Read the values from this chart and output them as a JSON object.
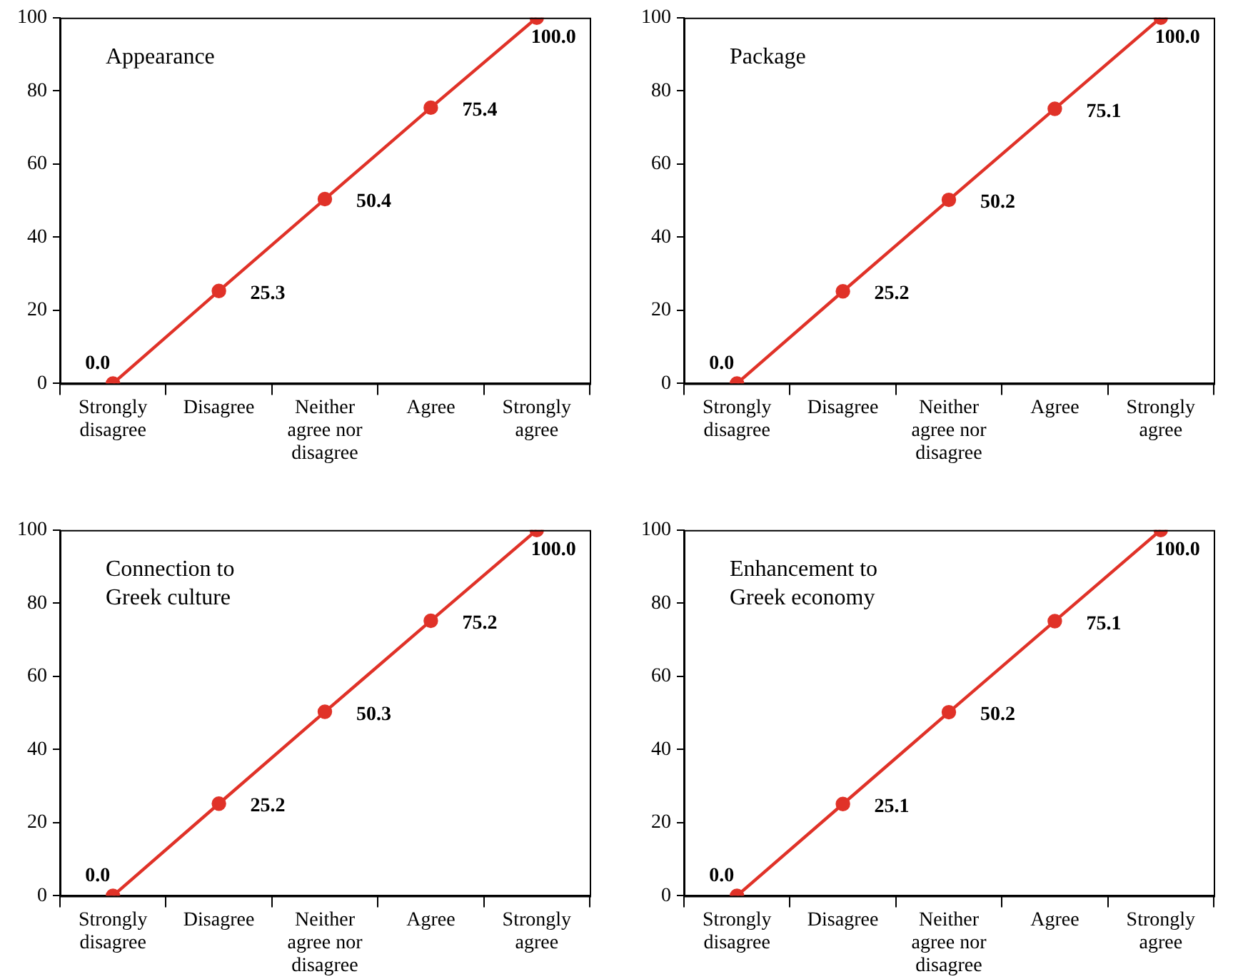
{
  "chart_data": [
    {
      "type": "line",
      "title": "Appearance",
      "categories": [
        "Strongly disagree",
        "Disagree",
        "Neither agree nor disagree",
        "Agree",
        "Strongly agree"
      ],
      "series": [
        {
          "color": "#e03228",
          "values": [
            0.0,
            25.3,
            50.4,
            75.4,
            100.0
          ],
          "value_labels": [
            "0.0",
            "25.3",
            "50.4",
            "75.4",
            "100.0"
          ]
        }
      ],
      "ylim": [
        0,
        100
      ],
      "yticks": [
        0,
        20,
        40,
        60,
        80,
        100
      ],
      "marker": "circle",
      "legend": false
    },
    {
      "type": "line",
      "title": "Package",
      "categories": [
        "Strongly disagree",
        "Disagree",
        "Neither agree nor disagree",
        "Agree",
        "Strongly agree"
      ],
      "series": [
        {
          "color": "#e03228",
          "values": [
            0.0,
            25.2,
            50.2,
            75.1,
            100.0
          ],
          "value_labels": [
            "0.0",
            "25.2",
            "50.2",
            "75.1",
            "100.0"
          ]
        }
      ],
      "ylim": [
        0,
        100
      ],
      "yticks": [
        0,
        20,
        40,
        60,
        80,
        100
      ],
      "marker": "circle",
      "legend": false
    },
    {
      "type": "line",
      "title": "Connection to Greek culture",
      "categories": [
        "Strongly disagree",
        "Disagree",
        "Neither agree nor disagree",
        "Agree",
        "Strongly agree"
      ],
      "series": [
        {
          "color": "#e03228",
          "values": [
            0.0,
            25.2,
            50.3,
            75.2,
            100.0
          ],
          "value_labels": [
            "0.0",
            "25.2",
            "50.3",
            "75.2",
            "100.0"
          ]
        }
      ],
      "ylim": [
        0,
        100
      ],
      "yticks": [
        0,
        20,
        40,
        60,
        80,
        100
      ],
      "marker": "circle",
      "legend": false
    },
    {
      "type": "line",
      "title": "Enhancement to Greek economy",
      "categories": [
        "Strongly disagree",
        "Disagree",
        "Neither agree nor disagree",
        "Agree",
        "Strongly agree"
      ],
      "series": [
        {
          "color": "#e03228",
          "values": [
            0.0,
            25.1,
            50.2,
            75.1,
            100.0
          ],
          "value_labels": [
            "0.0",
            "25.1",
            "50.2",
            "75.1",
            "100.0"
          ]
        }
      ],
      "ylim": [
        0,
        100
      ],
      "yticks": [
        0,
        20,
        40,
        60,
        80,
        100
      ],
      "marker": "circle",
      "legend": false
    }
  ]
}
